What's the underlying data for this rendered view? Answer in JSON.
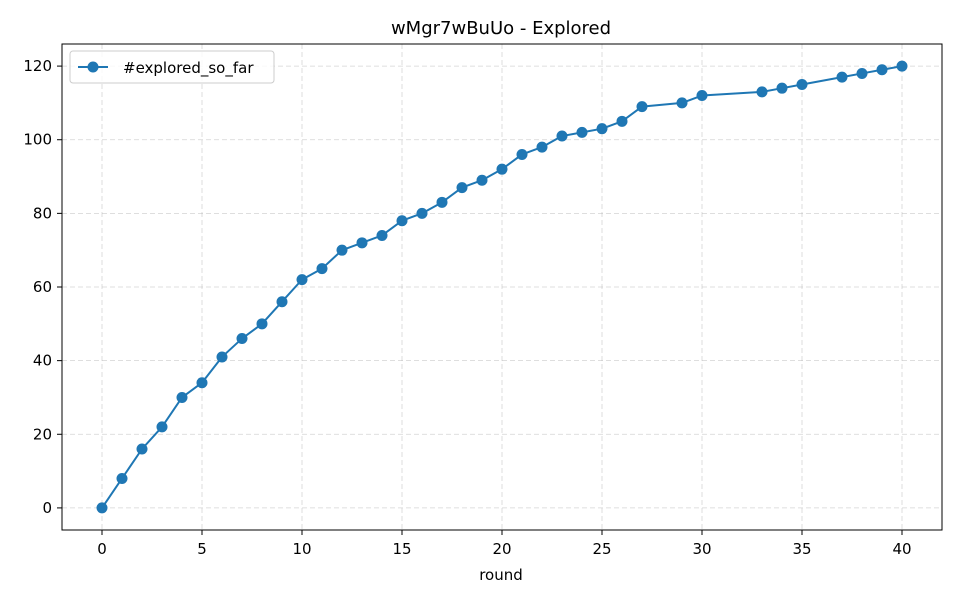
{
  "chart_data": {
    "type": "line",
    "title": "wMgr7wBuUo - Explored",
    "xlabel": "round",
    "ylabel": "",
    "xlim": [
      -2,
      42
    ],
    "ylim": [
      -6,
      126
    ],
    "xticks": [
      0,
      5,
      10,
      15,
      20,
      25,
      30,
      35,
      40
    ],
    "yticks": [
      0,
      20,
      40,
      60,
      80,
      100,
      120
    ],
    "grid": true,
    "grid_style": "dashed",
    "legend_position": "top-left",
    "series": [
      {
        "name": "#explored_so_far",
        "color": "#1f77b4",
        "marker": "circle",
        "x": [
          0,
          1,
          2,
          3,
          4,
          5,
          6,
          7,
          8,
          9,
          10,
          11,
          12,
          13,
          14,
          15,
          16,
          17,
          18,
          19,
          20,
          21,
          22,
          23,
          24,
          25,
          26,
          27,
          29,
          30,
          33,
          34,
          35,
          37,
          38,
          39,
          40
        ],
        "y": [
          0,
          8,
          16,
          22,
          30,
          34,
          41,
          46,
          50,
          56,
          62,
          65,
          70,
          72,
          74,
          78,
          80,
          83,
          87,
          89,
          92,
          96,
          98,
          101,
          102,
          103,
          105,
          109,
          110,
          112,
          113,
          114,
          115,
          117,
          118,
          119,
          120
        ]
      }
    ]
  }
}
